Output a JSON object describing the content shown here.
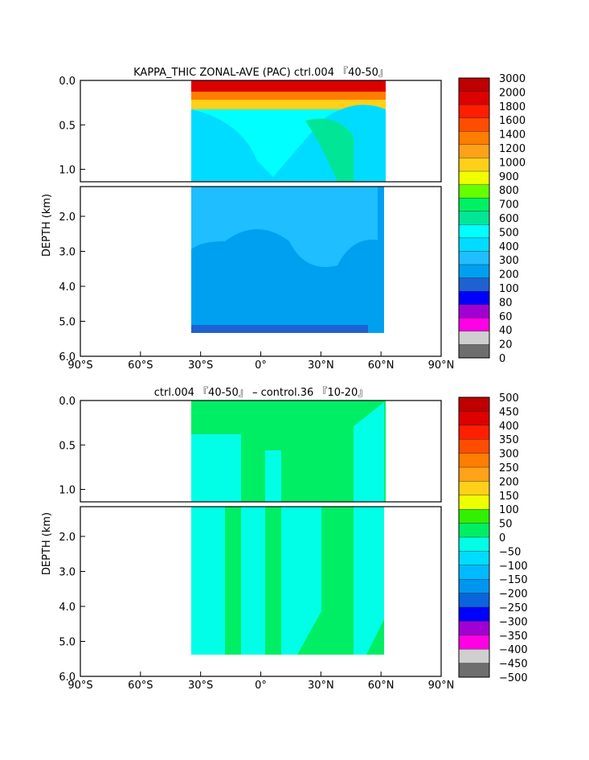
{
  "colors": {
    "panel1": [
      "#6e6e6e",
      "#cfcfcf",
      "#ff00e6",
      "#a100d2",
      "#0000ff",
      "#1e62d2",
      "#00a0f0",
      "#1ebeff",
      "#00dcff",
      "#00ffff",
      "#00e696",
      "#00f064",
      "#64ff00",
      "#f0ff00",
      "#ffd01a",
      "#ffa21a",
      "#ff7d00",
      "#ff4d00",
      "#ff1e00",
      "#dc0000",
      "#be0000"
    ],
    "panel2": [
      "#6e6e6e",
      "#cfcfcf",
      "#ff00e6",
      "#a100d2",
      "#0000ff",
      "#0a64dc",
      "#0096f0",
      "#00baff",
      "#00dcff",
      "#00ffe6",
      "#00ee64",
      "#32f000",
      "#f0ff00",
      "#ffd01a",
      "#ffa21a",
      "#ff7d00",
      "#ff4d00",
      "#ff1e00",
      "#dc0000",
      "#be0000"
    ]
  },
  "chart_data": [
    {
      "type": "heatmap",
      "title": "KAPPA_THIC ZONAL-AVE (PAC) ctrl.004 『40-50』",
      "ylabel": "DEPTH (km)",
      "xlabel": "",
      "x_ticks": [
        "90°S",
        "60°S",
        "30°S",
        "0°",
        "30°N",
        "60°N",
        "90°N"
      ],
      "x_range": [
        -90,
        90
      ],
      "y_ticks_upper": [
        "0.0",
        "0.5",
        "1.0"
      ],
      "y_ticks_lower": [
        "2.0",
        "3.0",
        "4.0",
        "5.0",
        "6.0"
      ],
      "y_range_km": [
        0,
        6
      ],
      "data_lat_range": [
        -34,
        64
      ],
      "colorbar_labels": [
        "3000",
        "2000",
        "1800",
        "1600",
        "1400",
        "1200",
        "1000",
        "900",
        "800",
        "700",
        "600",
        "500",
        "400",
        "300",
        "200",
        "100",
        "80",
        "60",
        "40",
        "20",
        "0"
      ]
    },
    {
      "type": "heatmap",
      "title": "ctrl.004 『40-50』 – control.36 『10-20』",
      "ylabel": "DEPTH (km)",
      "xlabel": "",
      "x_ticks": [
        "90°S",
        "60°S",
        "30°S",
        "0°",
        "30°N",
        "60°N",
        "90°N"
      ],
      "x_range": [
        -90,
        90
      ],
      "y_ticks_upper": [
        "0.0",
        "0.5",
        "1.0"
      ],
      "y_ticks_lower": [
        "2.0",
        "3.0",
        "4.0",
        "5.0",
        "6.0"
      ],
      "y_range_km": [
        0,
        6
      ],
      "data_lat_range": [
        -34,
        62
      ],
      "colorbar_labels": [
        "500",
        "450",
        "400",
        "350",
        "300",
        "250",
        "200",
        "150",
        "100",
        "50",
        "0",
        "−50",
        "−100",
        "−150",
        "−200",
        "−250",
        "−300",
        "−350",
        "−400",
        "−450",
        "−500"
      ]
    }
  ]
}
